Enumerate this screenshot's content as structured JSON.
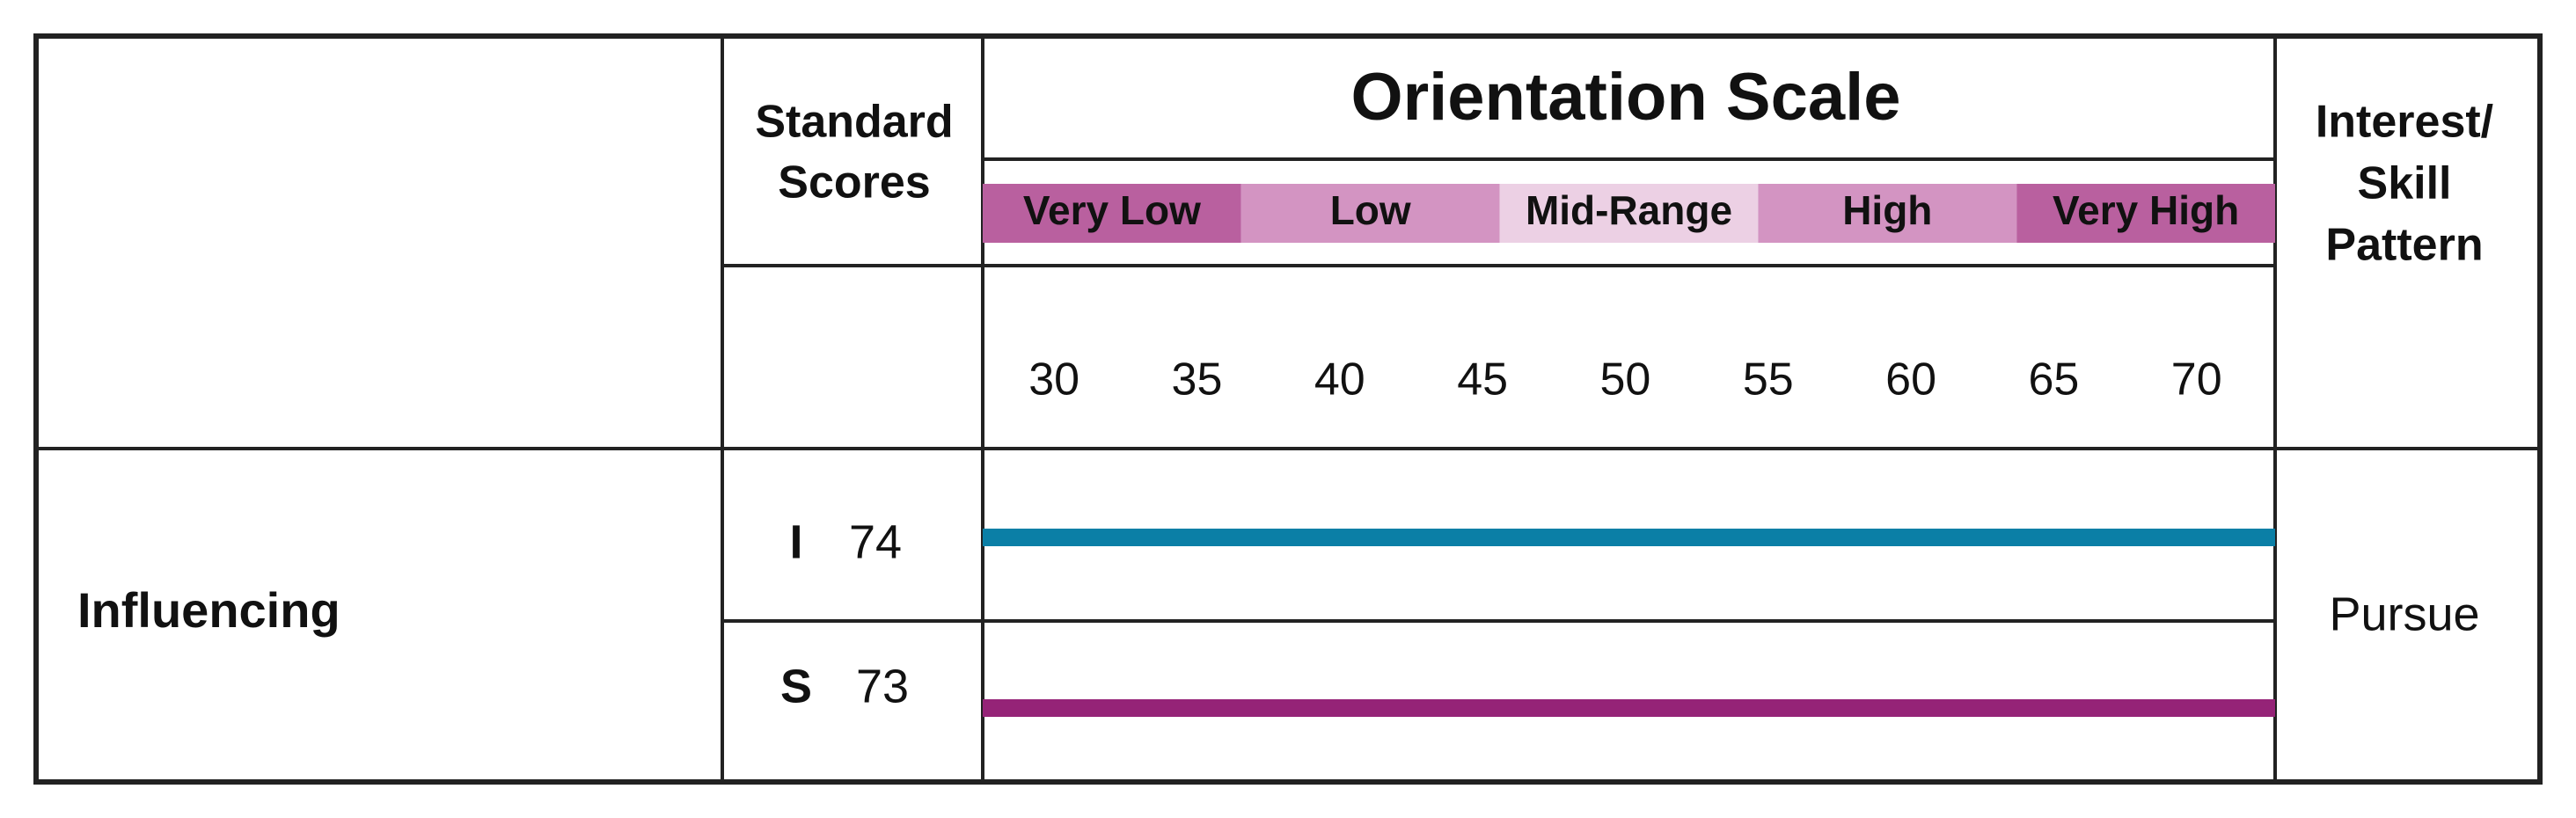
{
  "header": {
    "scores_heading": [
      "Standard",
      "Scores"
    ],
    "scale_title": "Orientation Scale",
    "pattern_heading": [
      "Interest/",
      "Skill",
      "Pattern"
    ]
  },
  "bands": [
    {
      "label": "Very Low",
      "color": "#b9609f"
    },
    {
      "label": "Low",
      "color": "#d394c2"
    },
    {
      "label": "Mid-Range",
      "color": "#ecd0e4"
    },
    {
      "label": "High",
      "color": "#d394c2"
    },
    {
      "label": "Very High",
      "color": "#b9609f"
    }
  ],
  "scale": {
    "xlim": [
      27.5,
      72.75
    ],
    "xticks": [
      30,
      35,
      40,
      45,
      50,
      55,
      60,
      65,
      70
    ]
  },
  "rows": [
    {
      "name": "Influencing",
      "pattern": "Pursue",
      "scores": [
        {
          "letter": "I",
          "value": 74,
          "color": "#0b7fa6"
        },
        {
          "letter": "S",
          "value": 73,
          "color": "#952377"
        }
      ]
    }
  ]
}
